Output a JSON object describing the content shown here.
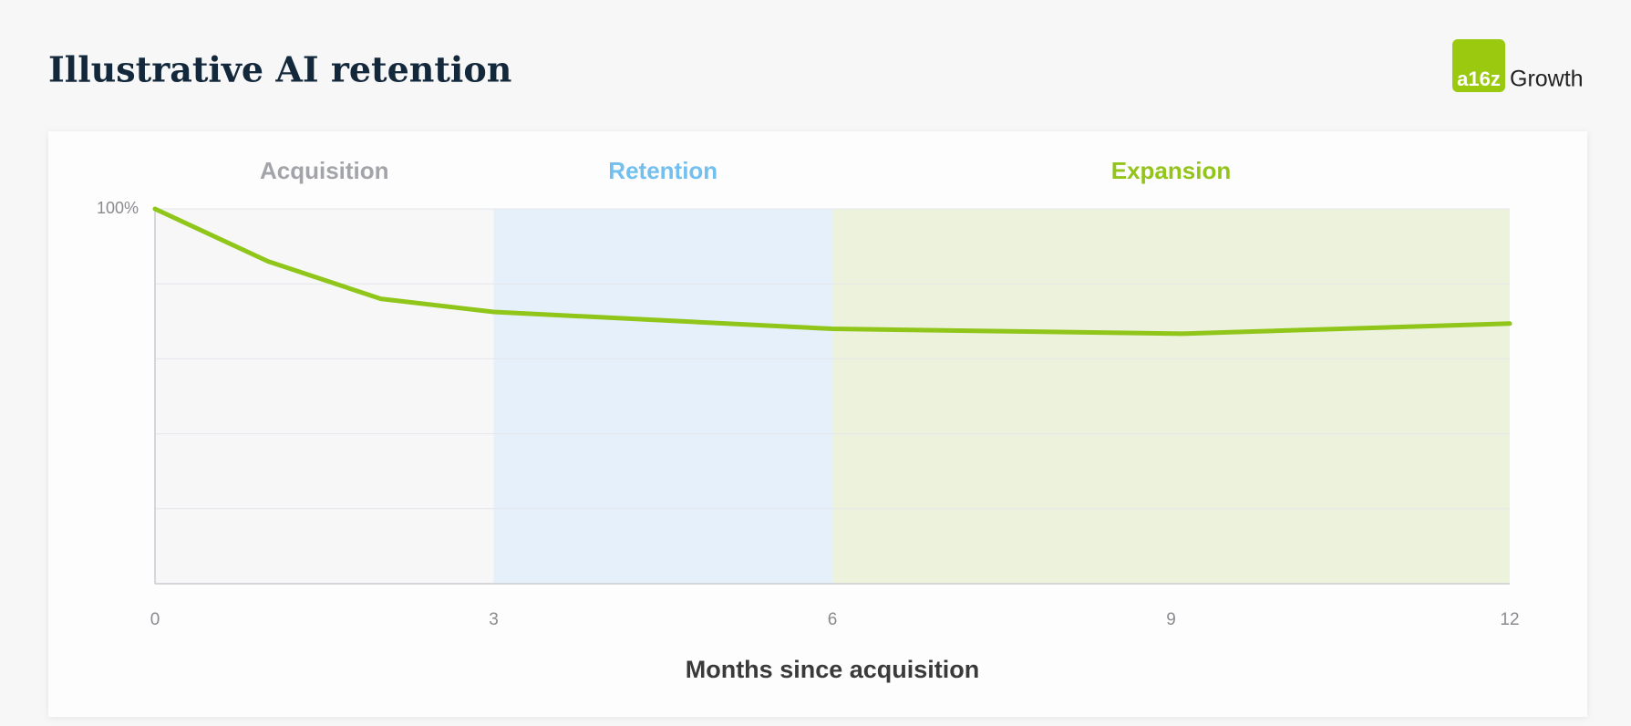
{
  "chart_data": {
    "type": "line",
    "title": "Illustrative AI retention",
    "logo": {
      "mark": "a16z",
      "text": "Growth"
    },
    "x_label": "Months since acquisition",
    "x": [
      0,
      1,
      2,
      3,
      6,
      9.1,
      12
    ],
    "series": [
      {
        "name": "Retention",
        "color": "#8fc619",
        "values": [
          100,
          86,
          76,
          72.5,
          68,
          66.7,
          69.4
        ]
      }
    ],
    "xlim": [
      0,
      12
    ],
    "xticks": [
      0,
      3,
      6,
      9,
      12
    ],
    "ylim": [
      0,
      100
    ],
    "yticks": [
      {
        "value": 100,
        "label": "100%"
      }
    ],
    "ygrid": [
      20,
      40,
      60,
      80
    ],
    "bands": [
      {
        "label": "Acquisition",
        "start": 0,
        "end": 3,
        "color": "#f7f7f8",
        "label_color": "#a3a3aa"
      },
      {
        "label": "Retention",
        "start": 3,
        "end": 6,
        "color": "#e6f0fb",
        "label_color": "#73bfee"
      },
      {
        "label": "Expansion",
        "start": 6,
        "end": 12,
        "color": "#ecf2dc",
        "label_color": "#92c41a"
      }
    ]
  }
}
